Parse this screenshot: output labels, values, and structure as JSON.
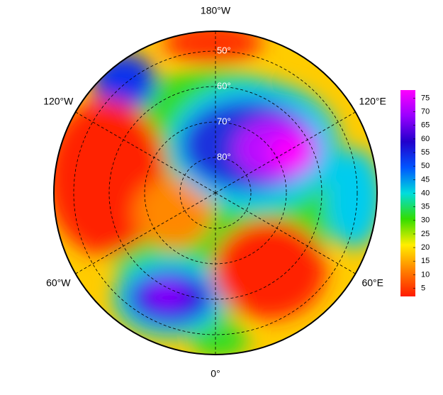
{
  "map": {
    "projection": "north-polar-stereographic",
    "longitude_labels": [
      {
        "value": 180,
        "label": "180°W"
      },
      {
        "value": -120,
        "label": "120°W"
      },
      {
        "value": 120,
        "label": "120°E"
      },
      {
        "value": -60,
        "label": "60°W"
      },
      {
        "value": 60,
        "label": "60°E"
      },
      {
        "value": 0,
        "label": "0°"
      }
    ],
    "latitude_labels": [
      {
        "value": 50,
        "label": "50°"
      },
      {
        "value": 60,
        "label": "60°"
      },
      {
        "value": 70,
        "label": "70°"
      },
      {
        "value": 80,
        "label": "80°"
      }
    ],
    "colorbar": {
      "lim": [
        2,
        78
      ],
      "ticks": [
        5,
        10,
        15,
        20,
        25,
        30,
        35,
        40,
        45,
        50,
        55,
        60,
        65,
        70,
        75
      ],
      "colors": [
        "#ff1a00",
        "#ff8000",
        "#ffee00",
        "#33dd00",
        "#00dddd",
        "#0055ff",
        "#2200cc",
        "#9900ff",
        "#ff00ff"
      ]
    }
  }
}
